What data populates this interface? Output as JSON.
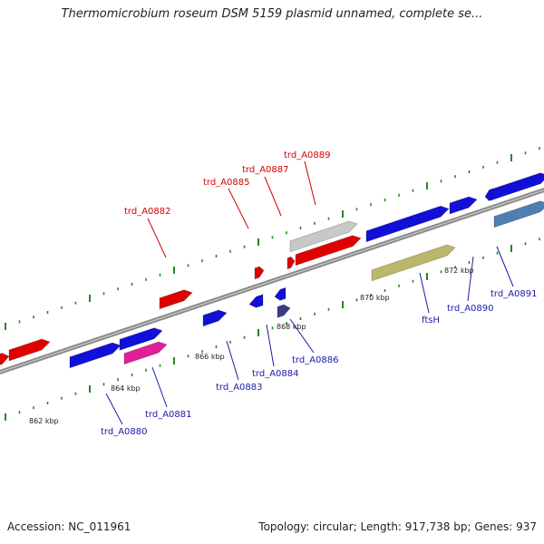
{
  "title": "Thermomicrobium roseum DSM 5159 plasmid unnamed, complete se...",
  "footer": {
    "accession": "Accession: NC_011961",
    "summary": "Topology: circular; Length: 917,738 bp; Genes: 937"
  },
  "colors": {
    "backbone": "#8a8a8a",
    "ticks": "#1f8a1f",
    "red_gene": "#e00000",
    "blue_gene": "#1010d8",
    "pink_gene": "#e0209a",
    "grey_gene": "#c8c8c8",
    "khaki_gene": "#bdb76b",
    "steel_gene": "#4f7fb0",
    "navy_gene": "#3a3a8a",
    "red_label": "#d40000",
    "blue_label": "#1a1aa8"
  },
  "scale_labels": [
    "862 kbp",
    "864 kbp",
    "866 kbp",
    "868 kbp",
    "870 kbp",
    "872 kbp"
  ],
  "top_labels": [
    "trd_A0882",
    "trd_A0885",
    "trd_A0887",
    "trd_A0889"
  ],
  "bottom_labels": [
    "trd_A0880",
    "trd_A0881",
    "trd_A0883",
    "trd_A0884",
    "trd_A0886",
    "ftsH",
    "trd_A0890",
    "trd_A0891"
  ]
}
